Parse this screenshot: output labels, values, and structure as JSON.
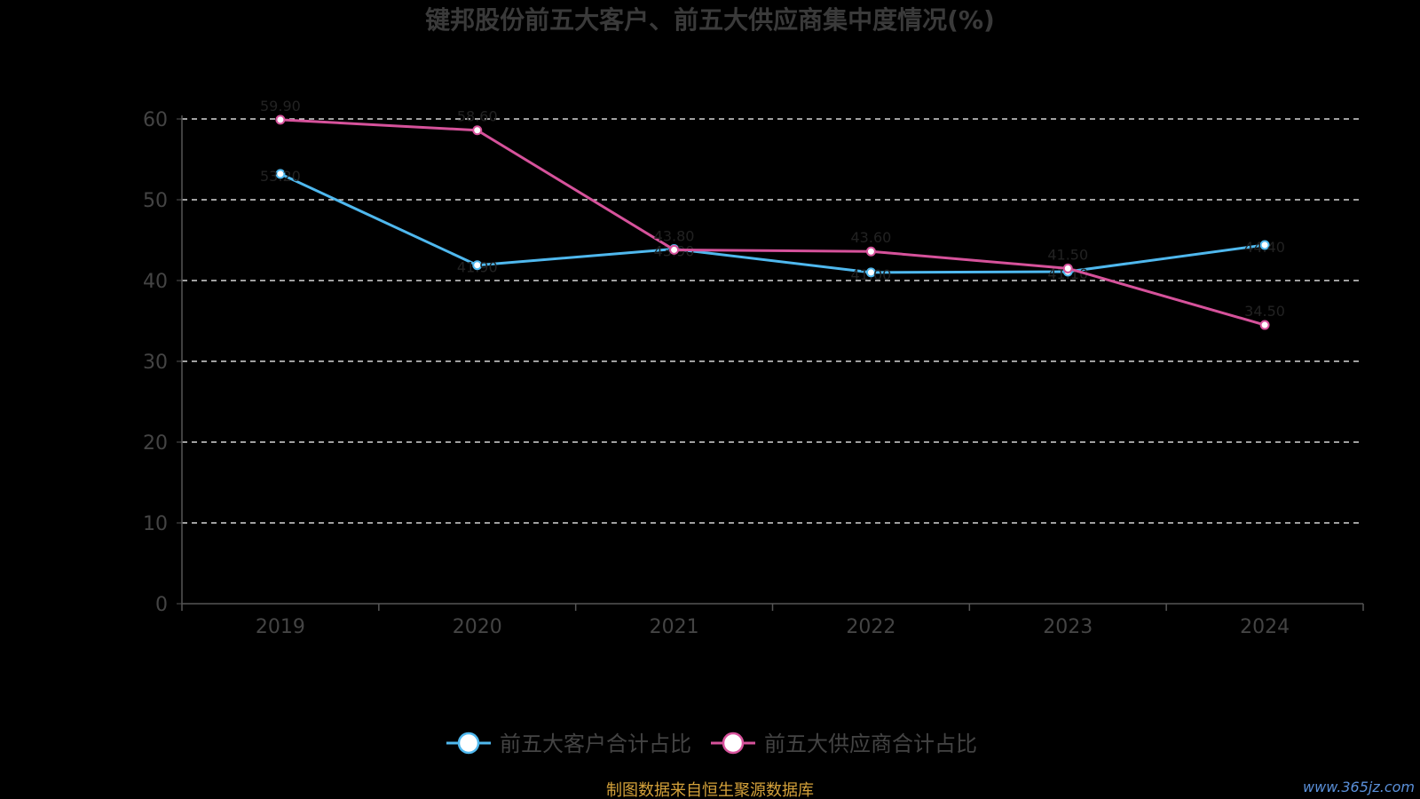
{
  "chart_data": {
    "type": "line",
    "title": "键邦股份前五大客户、前五大供应商集中度情况(%)",
    "categories": [
      "2019",
      "2020",
      "2021",
      "2022",
      "2023",
      "2024"
    ],
    "ylim": [
      0,
      60
    ],
    "yticks": [
      "0",
      "10",
      "20",
      "30",
      "40",
      "50",
      "60"
    ],
    "grid": true,
    "legend_position": "bottom",
    "series": [
      {
        "name": "前五大客户合计占比",
        "color": "#4fb8ee",
        "values": [
          53.2,
          41.9,
          43.9,
          41.0,
          41.1,
          44.4
        ]
      },
      {
        "name": "前五大供应商合计占比",
        "color": "#d6529b",
        "values": [
          59.9,
          58.6,
          43.8,
          43.6,
          41.5,
          34.5
        ]
      }
    ]
  },
  "footer": {
    "source": "制图数据来自恒生聚源数据库",
    "watermark": "www.365jz.com"
  }
}
